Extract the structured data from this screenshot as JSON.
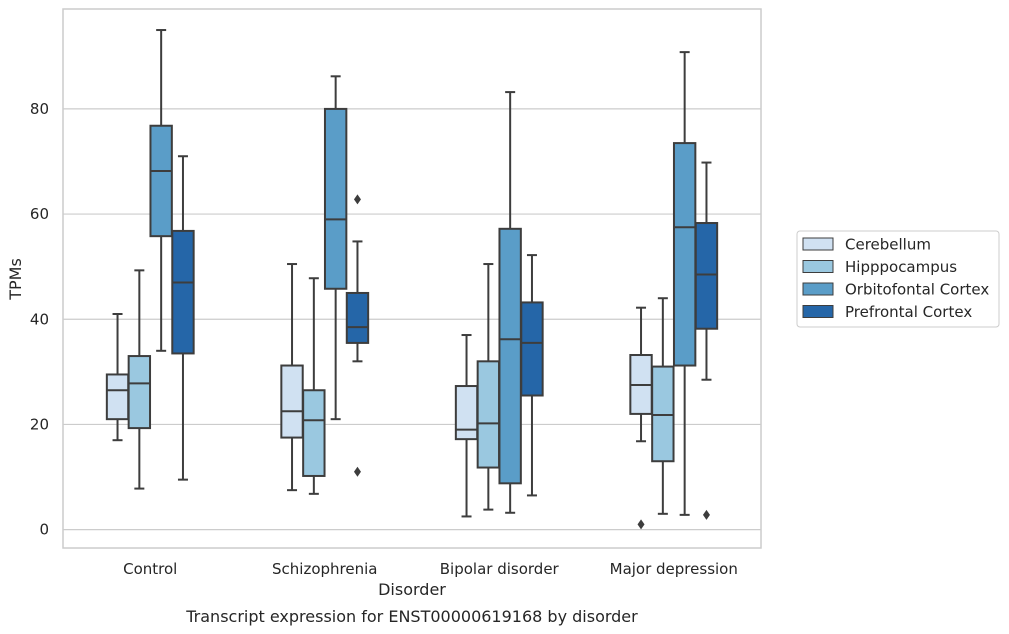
{
  "chart_data": {
    "type": "boxplot",
    "title": "",
    "caption": "Transcript expression for ENST00000619168 by disorder",
    "xlabel": "Disorder",
    "ylabel": "TPMs",
    "ylim": [
      -3.5,
      99
    ],
    "yticks": [
      0,
      20,
      40,
      60,
      80
    ],
    "grid": "horizontal",
    "legend_position": "right",
    "categories": [
      "Control",
      "Schizophrenia",
      "Bipolar disorder",
      "Major depression"
    ],
    "series": [
      {
        "name": "Cerebellum",
        "color": "#d0e1f2",
        "boxes": [
          {
            "whisker_low": 17,
            "q1": 21,
            "median": 26.5,
            "q3": 29.5,
            "whisker_high": 41,
            "outliers": []
          },
          {
            "whisker_low": 7.5,
            "q1": 17.5,
            "median": 22.5,
            "q3": 31.2,
            "whisker_high": 50.5,
            "outliers": []
          },
          {
            "whisker_low": 2.5,
            "q1": 17.2,
            "median": 19,
            "q3": 27.3,
            "whisker_high": 37,
            "outliers": []
          },
          {
            "whisker_low": 16.8,
            "q1": 22,
            "median": 27.5,
            "q3": 33.2,
            "whisker_high": 42.2,
            "outliers": [
              1
            ]
          }
        ]
      },
      {
        "name": "Hipppocampus",
        "color": "#9ac8e0",
        "boxes": [
          {
            "whisker_low": 7.8,
            "q1": 19.3,
            "median": 27.8,
            "q3": 33,
            "whisker_high": 49.3,
            "outliers": []
          },
          {
            "whisker_low": 6.8,
            "q1": 10.2,
            "median": 20.8,
            "q3": 26.5,
            "whisker_high": 47.8,
            "outliers": []
          },
          {
            "whisker_low": 3.8,
            "q1": 11.8,
            "median": 20.2,
            "q3": 32,
            "whisker_high": 50.5,
            "outliers": []
          },
          {
            "whisker_low": 3,
            "q1": 13,
            "median": 21.8,
            "q3": 31,
            "whisker_high": 44,
            "outliers": []
          }
        ]
      },
      {
        "name": "Orbitofontal Cortex",
        "color": "#5a9dc8",
        "boxes": [
          {
            "whisker_low": 34,
            "q1": 55.8,
            "median": 68.2,
            "q3": 76.8,
            "whisker_high": 95,
            "outliers": []
          },
          {
            "whisker_low": 21,
            "q1": 45.8,
            "median": 59,
            "q3": 80,
            "whisker_high": 86.2,
            "outliers": []
          },
          {
            "whisker_low": 3.2,
            "q1": 8.8,
            "median": 36.2,
            "q3": 57.2,
            "whisker_high": 83.2,
            "outliers": []
          },
          {
            "whisker_low": 2.8,
            "q1": 31.2,
            "median": 57.5,
            "q3": 73.5,
            "whisker_high": 90.8,
            "outliers": []
          }
        ]
      },
      {
        "name": "Prefrontal Cortex",
        "color": "#2566a8",
        "boxes": [
          {
            "whisker_low": 9.5,
            "q1": 33.5,
            "median": 47,
            "q3": 56.8,
            "whisker_high": 71,
            "outliers": []
          },
          {
            "whisker_low": 32,
            "q1": 35.5,
            "median": 38.5,
            "q3": 45,
            "whisker_high": 54.8,
            "outliers": [
              62.8,
              11
            ]
          },
          {
            "whisker_low": 6.5,
            "q1": 25.5,
            "median": 35.5,
            "q3": 43.2,
            "whisker_high": 52.2,
            "outliers": []
          },
          {
            "whisker_low": 28.5,
            "q1": 38.2,
            "median": 48.5,
            "q3": 58.3,
            "whisker_high": 69.8,
            "outliers": [
              2.8
            ]
          }
        ]
      }
    ]
  }
}
